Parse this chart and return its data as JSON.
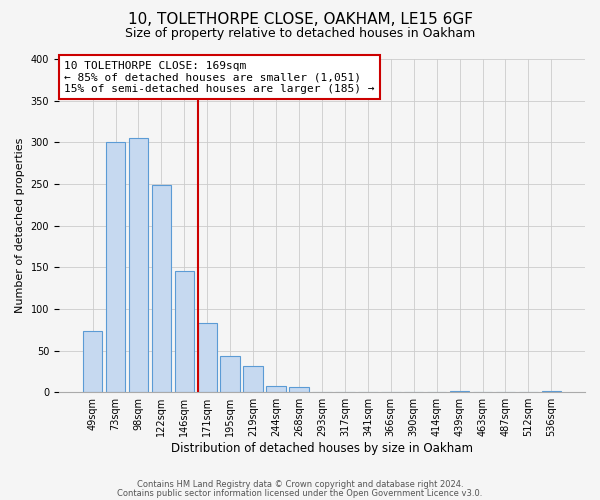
{
  "title": "10, TOLETHORPE CLOSE, OAKHAM, LE15 6GF",
  "subtitle": "Size of property relative to detached houses in Oakham",
  "xlabel": "Distribution of detached houses by size in Oakham",
  "ylabel": "Number of detached properties",
  "bar_labels": [
    "49sqm",
    "73sqm",
    "98sqm",
    "122sqm",
    "146sqm",
    "171sqm",
    "195sqm",
    "219sqm",
    "244sqm",
    "268sqm",
    "293sqm",
    "317sqm",
    "341sqm",
    "366sqm",
    "390sqm",
    "414sqm",
    "439sqm",
    "463sqm",
    "487sqm",
    "512sqm",
    "536sqm"
  ],
  "bar_heights": [
    74,
    300,
    305,
    249,
    145,
    83,
    44,
    32,
    8,
    6,
    0,
    0,
    0,
    0,
    0,
    0,
    2,
    0,
    0,
    0,
    2
  ],
  "bar_color": "#c6d9f0",
  "bar_edge_color": "#5b9bd5",
  "vline_x_index": 5,
  "vline_color": "#cc0000",
  "annotation_title": "10 TOLETHORPE CLOSE: 169sqm",
  "annotation_line1": "← 85% of detached houses are smaller (1,051)",
  "annotation_line2": "15% of semi-detached houses are larger (185) →",
  "annotation_box_color": "white",
  "annotation_box_edge": "#cc0000",
  "ylim": [
    0,
    400
  ],
  "yticks": [
    0,
    50,
    100,
    150,
    200,
    250,
    300,
    350,
    400
  ],
  "footer1": "Contains HM Land Registry data © Crown copyright and database right 2024.",
  "footer2": "Contains public sector information licensed under the Open Government Licence v3.0.",
  "bg_color": "#f5f5f5",
  "title_fontsize": 11,
  "subtitle_fontsize": 9,
  "tick_fontsize": 7,
  "ylabel_fontsize": 8,
  "xlabel_fontsize": 8.5,
  "ann_fontsize": 8,
  "footer_fontsize": 6
}
